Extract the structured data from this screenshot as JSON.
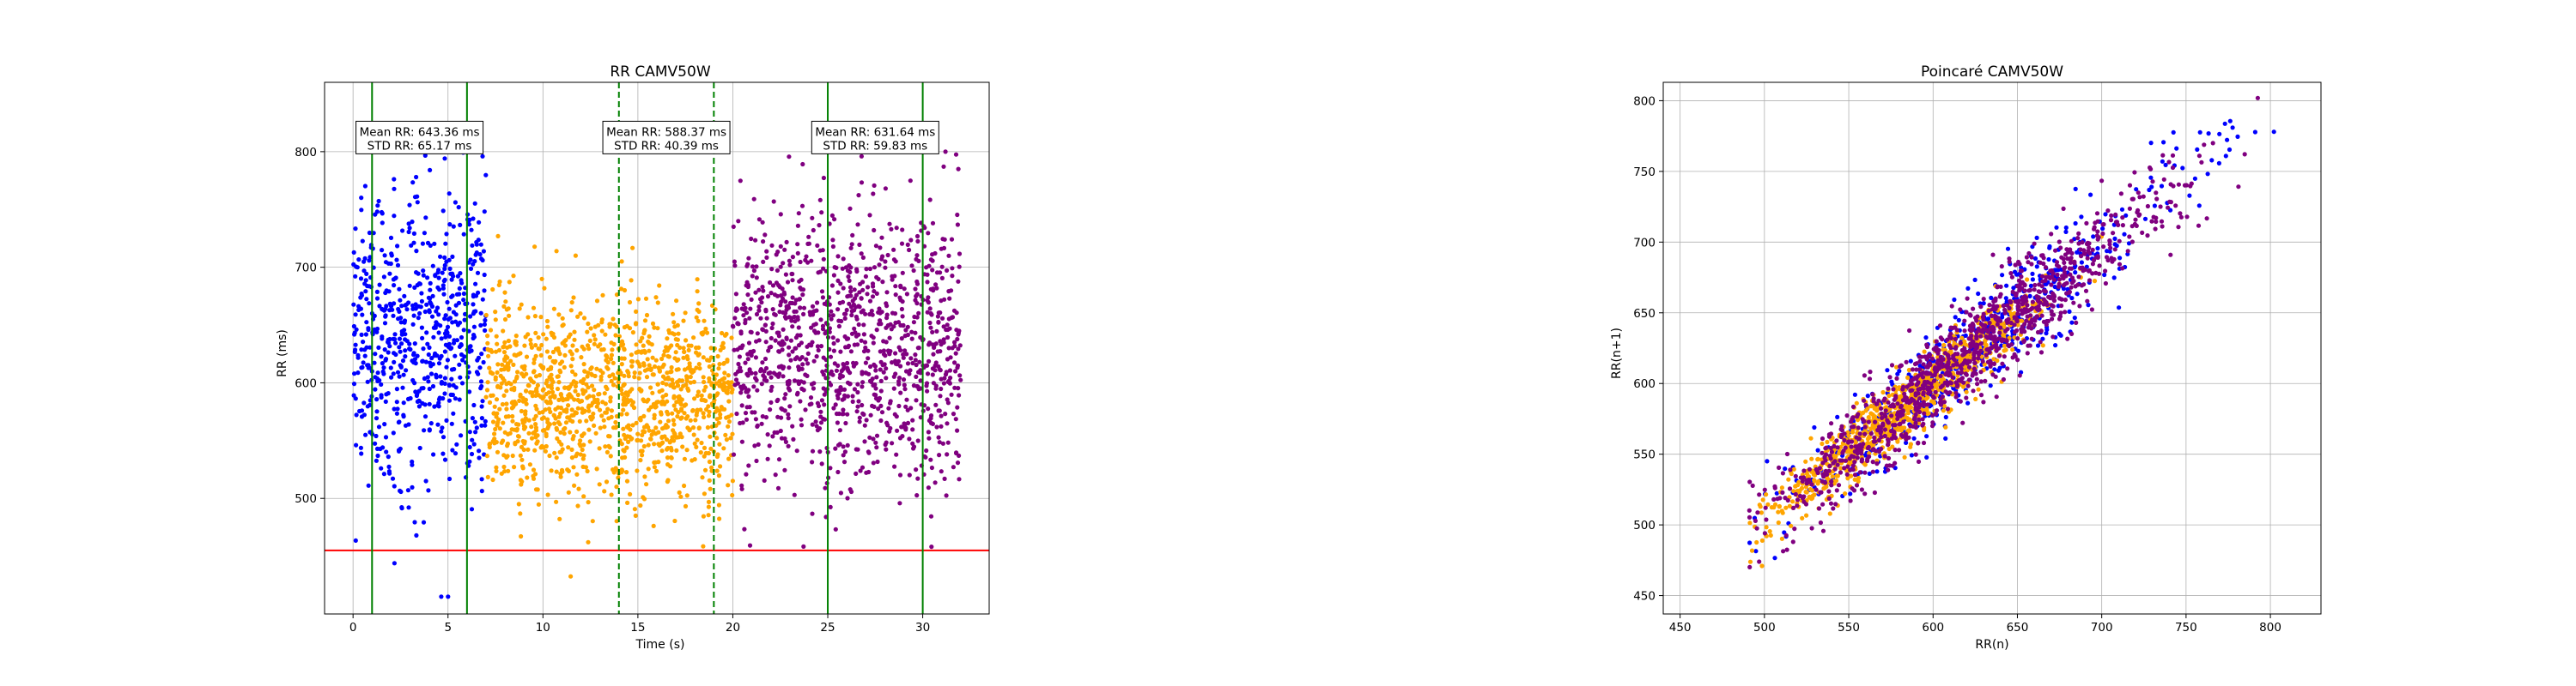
{
  "chart_data": [
    {
      "type": "scatter",
      "title": "RR CAMV50W",
      "xlabel": "Time (s)",
      "ylabel": "RR (ms)",
      "xlim": [
        -1.5,
        33.5
      ],
      "ylim": [
        400,
        860
      ],
      "xticks": [
        0,
        5,
        10,
        15,
        20,
        25,
        30
      ],
      "yticks": [
        500,
        600,
        700,
        800
      ],
      "grid": true,
      "series": [
        {
          "color": "#0000ff",
          "segment": [
            0,
            7
          ],
          "mean": 643.36,
          "std": 65.17
        },
        {
          "color": "#ffa500",
          "segment": [
            7,
            20
          ],
          "mean": 588.37,
          "std": 40.39
        },
        {
          "color": "#800080",
          "segment": [
            20,
            32
          ],
          "mean": 631.64,
          "std": 59.83
        }
      ],
      "vlines": [
        {
          "x": 1,
          "color": "#008000",
          "style": "solid"
        },
        {
          "x": 6,
          "color": "#008000",
          "style": "solid"
        },
        {
          "x": 14,
          "color": "#008000",
          "style": "dashed"
        },
        {
          "x": 19,
          "color": "#008000",
          "style": "dashed"
        },
        {
          "x": 25,
          "color": "#008000",
          "style": "solid"
        },
        {
          "x": 30,
          "color": "#008000",
          "style": "solid"
        }
      ],
      "hlines": [
        {
          "y": 455,
          "color": "#ff0000",
          "style": "solid"
        }
      ],
      "annotations": [
        {
          "x": 3.5,
          "y": 810,
          "line1": "Mean RR: 643.36 ms",
          "line2": "STD RR: 65.17 ms"
        },
        {
          "x": 16.5,
          "y": 810,
          "line1": "Mean RR: 588.37 ms",
          "line2": "STD RR: 40.39 ms"
        },
        {
          "x": 27.5,
          "y": 810,
          "line1": "Mean RR: 631.64 ms",
          "line2": "STD RR: 59.83 ms"
        }
      ]
    },
    {
      "type": "scatter",
      "title": "Poincaré CAMV50W",
      "xlabel": "RR(n)",
      "ylabel": "RR(n+1)",
      "xlim": [
        440,
        830
      ],
      "ylim": [
        437,
        813
      ],
      "xticks": [
        450,
        500,
        550,
        600,
        650,
        700,
        750,
        800
      ],
      "yticks": [
        450,
        500,
        550,
        600,
        650,
        700,
        750,
        800
      ],
      "grid": true,
      "series": [
        {
          "color": "#0000ff",
          "center": [
            625,
            625
          ],
          "spread": 65
        },
        {
          "color": "#ffa500",
          "center": [
            580,
            580
          ],
          "spread": 40
        },
        {
          "color": "#800080",
          "center": [
            620,
            620
          ],
          "spread": 60
        }
      ]
    }
  ]
}
